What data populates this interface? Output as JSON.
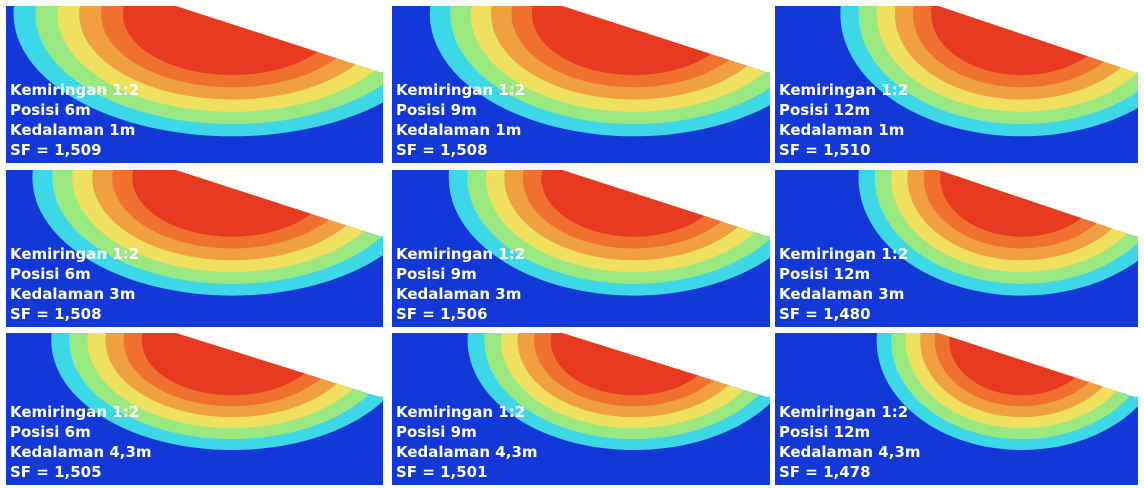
{
  "panels": [
    {
      "slope": "Kemiringan 1:2",
      "position": "Posisi 6m",
      "depth": "Kedalaman 1m",
      "sf": "SF = 1,509"
    },
    {
      "slope": "Kemiringan 1:2",
      "position": "Posisi 9m",
      "depth": "Kedalaman 1m",
      "sf": "SF = 1,508"
    },
    {
      "slope": "Kemiringan 1:2",
      "position": "Posisi 12m",
      "depth": "Kedalaman 1m",
      "sf": "SF = 1,510"
    },
    {
      "slope": "Kemiringan 1:2",
      "position": "Posisi 6m",
      "depth": "Kedalaman 3m",
      "sf": "SF = 1,508"
    },
    {
      "slope": "Kemiringan 1:2",
      "position": "Posisi 9m",
      "depth": "Kedalaman 3m",
      "sf": "SF = 1,506"
    },
    {
      "slope": "Kemiringan 1:2",
      "position": "Posisi 12m",
      "depth": "Kedalaman 3m",
      "sf": "SF = 1,480"
    },
    {
      "slope": "Kemiringan 1:2",
      "position": "Posisi 6m",
      "depth": "Kedalaman 4,3m",
      "sf": "SF = 1,505"
    },
    {
      "slope": "Kemiringan 1:2",
      "position": "Posisi 9m",
      "depth": "Kedalaman 4,3m",
      "sf": "SF = 1,501"
    },
    {
      "slope": "Kemiringan 1:2",
      "position": "Posisi 12m",
      "depth": "Kedalaman 4,3m",
      "sf": "SF = 1,478"
    }
  ]
}
